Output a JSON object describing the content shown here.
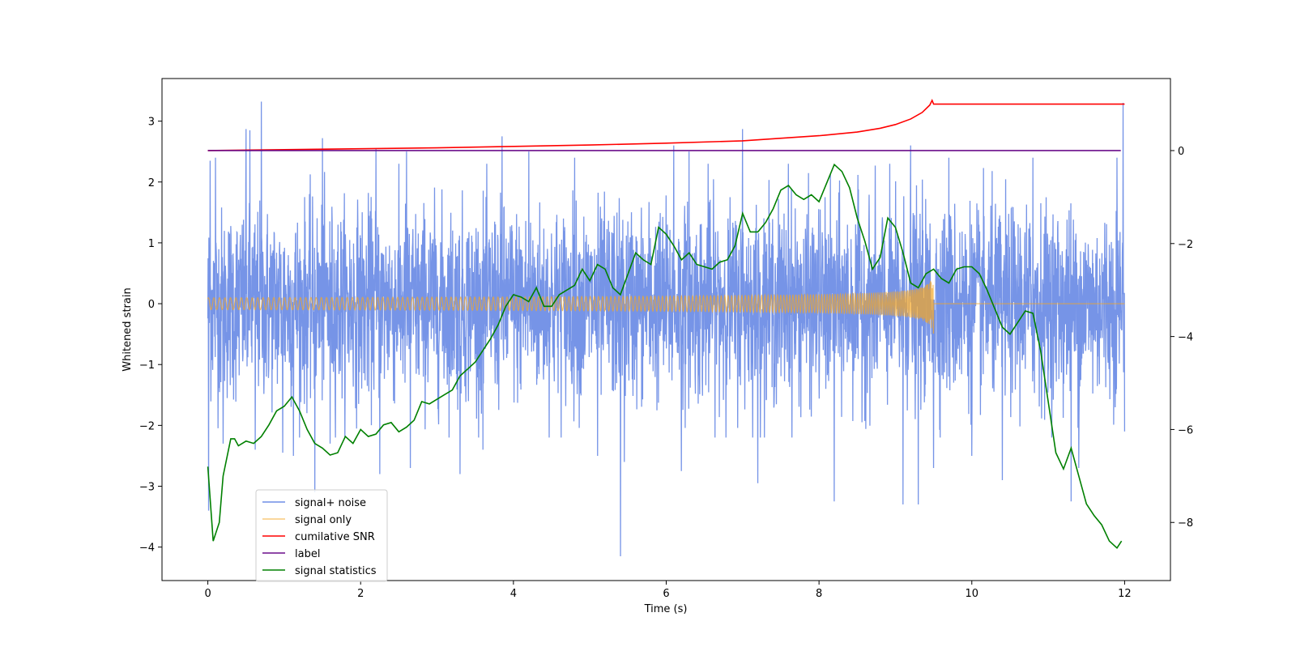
{
  "chart_data": {
    "type": "line",
    "title": "",
    "xlabel": "Time (s)",
    "ylabel": "Whitened strain",
    "y2label": "",
    "xlim": [
      -0.6,
      12.6
    ],
    "ylim": [
      -4.55,
      3.7
    ],
    "y2lim": [
      -9.25,
      1.55
    ],
    "xticks": [
      0,
      2,
      4,
      6,
      8,
      10,
      12
    ],
    "yticks": [
      -4,
      -3,
      -2,
      -1,
      0,
      1,
      2,
      3
    ],
    "y2ticks": [
      -8,
      -6,
      -4,
      -2,
      0
    ],
    "legend_position": "lower-left",
    "series": [
      {
        "name": "signal+ noise",
        "axis": "left",
        "color": "#6f8ee6",
        "kind": "noise",
        "x_range": [
          0,
          12
        ],
        "spikes": [
          [
            0.01,
            -3.4
          ],
          [
            0.03,
            2.35
          ],
          [
            0.1,
            2.4
          ],
          [
            0.2,
            -2.3
          ],
          [
            0.5,
            2.87
          ],
          [
            0.55,
            2.85
          ],
          [
            0.62,
            -2.4
          ],
          [
            0.7,
            3.32
          ],
          [
            0.98,
            -2.45
          ],
          [
            1.12,
            -2.5
          ],
          [
            1.4,
            -3.1
          ],
          [
            1.5,
            2.72
          ],
          [
            1.6,
            -2.3
          ],
          [
            2.2,
            2.55
          ],
          [
            2.25,
            -2.8
          ],
          [
            2.6,
            2.5
          ],
          [
            2.65,
            -2.7
          ],
          [
            3.3,
            -2.8
          ],
          [
            3.6,
            -2.4
          ],
          [
            3.85,
            2.75
          ],
          [
            4.2,
            2.5
          ],
          [
            4.8,
            2.4
          ],
          [
            5.1,
            -2.5
          ],
          [
            5.4,
            -4.15
          ],
          [
            5.45,
            -2.6
          ],
          [
            6.1,
            2.6
          ],
          [
            6.2,
            -2.75
          ],
          [
            6.3,
            2.5
          ],
          [
            6.55,
            2.3
          ],
          [
            7.0,
            2.87
          ],
          [
            7.2,
            -2.95
          ],
          [
            7.6,
            2.3
          ],
          [
            8.2,
            -3.25
          ],
          [
            9.1,
            -3.3
          ],
          [
            9.2,
            2.6
          ],
          [
            9.3,
            -3.3
          ],
          [
            9.5,
            -2.7
          ],
          [
            9.7,
            2.4
          ],
          [
            10.0,
            -2.5
          ],
          [
            10.4,
            -2.9
          ],
          [
            10.8,
            2.4
          ],
          [
            11.3,
            -3.25
          ],
          [
            11.4,
            -2.7
          ],
          [
            11.9,
            2.4
          ],
          [
            11.98,
            3.3
          ],
          [
            12.0,
            -2.1
          ]
        ]
      },
      {
        "name": "signal only",
        "axis": "left",
        "color": "#f5a623",
        "kind": "chirp",
        "x_range": [
          0,
          9.5
        ],
        "merger_time": 9.5,
        "peak_amplitude": 0.68
      },
      {
        "name": "cumilative SNR",
        "axis": "right",
        "color": "#ff0000",
        "points": [
          [
            0,
            0
          ],
          [
            1,
            0.02
          ],
          [
            2,
            0.04
          ],
          [
            3,
            0.06
          ],
          [
            4,
            0.09
          ],
          [
            5,
            0.12
          ],
          [
            6,
            0.16
          ],
          [
            7,
            0.21
          ],
          [
            8,
            0.32
          ],
          [
            8.5,
            0.4
          ],
          [
            8.8,
            0.48
          ],
          [
            9.0,
            0.56
          ],
          [
            9.2,
            0.68
          ],
          [
            9.35,
            0.82
          ],
          [
            9.45,
            0.98
          ],
          [
            9.48,
            1.08
          ],
          [
            9.5,
            1.0
          ],
          [
            12,
            1.0
          ]
        ]
      },
      {
        "name": "label",
        "axis": "right",
        "color": "#6a0d8a",
        "points": [
          [
            0,
            0
          ],
          [
            11.95,
            0
          ]
        ]
      },
      {
        "name": "signal statistics",
        "axis": "right",
        "color": "#008000",
        "points": [
          [
            0.0,
            -6.8
          ],
          [
            0.07,
            -8.4
          ],
          [
            0.15,
            -8.0
          ],
          [
            0.2,
            -7.0
          ],
          [
            0.3,
            -6.2
          ],
          [
            0.35,
            -6.2
          ],
          [
            0.4,
            -6.35
          ],
          [
            0.5,
            -6.25
          ],
          [
            0.6,
            -6.3
          ],
          [
            0.7,
            -6.15
          ],
          [
            0.8,
            -5.9
          ],
          [
            0.9,
            -5.6
          ],
          [
            1.0,
            -5.5
          ],
          [
            1.1,
            -5.3
          ],
          [
            1.2,
            -5.6
          ],
          [
            1.3,
            -6.0
          ],
          [
            1.4,
            -6.3
          ],
          [
            1.5,
            -6.4
          ],
          [
            1.6,
            -6.55
          ],
          [
            1.7,
            -6.5
          ],
          [
            1.8,
            -6.15
          ],
          [
            1.9,
            -6.3
          ],
          [
            2.0,
            -6.0
          ],
          [
            2.1,
            -6.15
          ],
          [
            2.2,
            -6.1
          ],
          [
            2.3,
            -5.9
          ],
          [
            2.4,
            -5.85
          ],
          [
            2.5,
            -6.05
          ],
          [
            2.6,
            -5.95
          ],
          [
            2.7,
            -5.8
          ],
          [
            2.8,
            -5.4
          ],
          [
            2.9,
            -5.45
          ],
          [
            3.0,
            -5.35
          ],
          [
            3.1,
            -5.25
          ],
          [
            3.2,
            -5.15
          ],
          [
            3.3,
            -4.85
          ],
          [
            3.4,
            -4.7
          ],
          [
            3.5,
            -4.55
          ],
          [
            3.6,
            -4.3
          ],
          [
            3.7,
            -4.05
          ],
          [
            3.8,
            -3.75
          ],
          [
            3.9,
            -3.35
          ],
          [
            4.0,
            -3.1
          ],
          [
            4.1,
            -3.15
          ],
          [
            4.2,
            -3.25
          ],
          [
            4.3,
            -2.95
          ],
          [
            4.4,
            -3.35
          ],
          [
            4.5,
            -3.35
          ],
          [
            4.6,
            -3.1
          ],
          [
            4.7,
            -3.0
          ],
          [
            4.8,
            -2.9
          ],
          [
            4.9,
            -2.55
          ],
          [
            5.0,
            -2.8
          ],
          [
            5.1,
            -2.45
          ],
          [
            5.2,
            -2.55
          ],
          [
            5.3,
            -2.95
          ],
          [
            5.4,
            -3.1
          ],
          [
            5.5,
            -2.65
          ],
          [
            5.6,
            -2.2
          ],
          [
            5.7,
            -2.35
          ],
          [
            5.8,
            -2.45
          ],
          [
            5.9,
            -1.65
          ],
          [
            6.0,
            -1.8
          ],
          [
            6.1,
            -2.05
          ],
          [
            6.2,
            -2.35
          ],
          [
            6.3,
            -2.2
          ],
          [
            6.4,
            -2.45
          ],
          [
            6.5,
            -2.5
          ],
          [
            6.6,
            -2.55
          ],
          [
            6.7,
            -2.4
          ],
          [
            6.8,
            -2.35
          ],
          [
            6.9,
            -2.05
          ],
          [
            7.0,
            -1.35
          ],
          [
            7.1,
            -1.75
          ],
          [
            7.2,
            -1.75
          ],
          [
            7.3,
            -1.55
          ],
          [
            7.4,
            -1.25
          ],
          [
            7.5,
            -0.85
          ],
          [
            7.6,
            -0.75
          ],
          [
            7.7,
            -0.95
          ],
          [
            7.8,
            -1.05
          ],
          [
            7.9,
            -0.95
          ],
          [
            8.0,
            -1.1
          ],
          [
            8.1,
            -0.7
          ],
          [
            8.2,
            -0.3
          ],
          [
            8.3,
            -0.45
          ],
          [
            8.4,
            -0.8
          ],
          [
            8.5,
            -1.45
          ],
          [
            8.6,
            -1.95
          ],
          [
            8.7,
            -2.55
          ],
          [
            8.8,
            -2.3
          ],
          [
            8.9,
            -1.45
          ],
          [
            9.0,
            -1.65
          ],
          [
            9.1,
            -2.2
          ],
          [
            9.2,
            -2.85
          ],
          [
            9.3,
            -2.95
          ],
          [
            9.4,
            -2.65
          ],
          [
            9.5,
            -2.55
          ],
          [
            9.6,
            -2.75
          ],
          [
            9.7,
            -2.85
          ],
          [
            9.8,
            -2.55
          ],
          [
            9.9,
            -2.5
          ],
          [
            10.0,
            -2.5
          ],
          [
            10.1,
            -2.65
          ],
          [
            10.2,
            -3.0
          ],
          [
            10.3,
            -3.4
          ],
          [
            10.4,
            -3.8
          ],
          [
            10.5,
            -3.95
          ],
          [
            10.6,
            -3.7
          ],
          [
            10.7,
            -3.45
          ],
          [
            10.8,
            -3.5
          ],
          [
            10.9,
            -4.3
          ],
          [
            11.0,
            -5.4
          ],
          [
            11.1,
            -6.5
          ],
          [
            11.2,
            -6.85
          ],
          [
            11.3,
            -6.4
          ],
          [
            11.4,
            -7.0
          ],
          [
            11.5,
            -7.6
          ],
          [
            11.6,
            -7.85
          ],
          [
            11.7,
            -8.05
          ],
          [
            11.8,
            -8.4
          ],
          [
            11.9,
            -8.55
          ],
          [
            11.96,
            -8.4
          ]
        ]
      }
    ]
  }
}
